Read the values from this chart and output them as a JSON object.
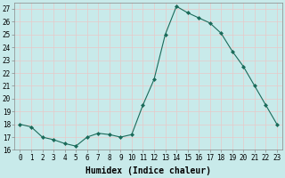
{
  "x": [
    0,
    1,
    2,
    3,
    4,
    5,
    6,
    7,
    8,
    9,
    10,
    11,
    12,
    13,
    14,
    15,
    16,
    17,
    18,
    19,
    20,
    21,
    22,
    23
  ],
  "y": [
    18,
    17.8,
    17,
    16.8,
    16.5,
    16.3,
    17,
    17.3,
    17.2,
    17,
    17.2,
    19.5,
    21.5,
    25,
    27.2,
    26.7,
    26.3,
    25.9,
    25.1,
    23.7,
    22.5,
    21.0,
    19.5,
    18.0
  ],
  "line_color": "#1a6b5a",
  "marker": "D",
  "marker_size": 2.0,
  "linewidth": 0.8,
  "xlabel": "Humidex (Indice chaleur)",
  "xlabel_fontsize": 7,
  "ylim": [
    16,
    27.5
  ],
  "xlim": [
    -0.5,
    23.5
  ],
  "yticks": [
    16,
    17,
    18,
    19,
    20,
    21,
    22,
    23,
    24,
    25,
    26,
    27
  ],
  "xticks": [
    0,
    1,
    2,
    3,
    4,
    5,
    6,
    7,
    8,
    9,
    10,
    11,
    12,
    13,
    14,
    15,
    16,
    17,
    18,
    19,
    20,
    21,
    22,
    23
  ],
  "xtick_labels": [
    "0",
    "1",
    "2",
    "3",
    "4",
    "5",
    "6",
    "7",
    "8",
    "9",
    "10",
    "11",
    "12",
    "13",
    "14",
    "15",
    "16",
    "17",
    "18",
    "19",
    "20",
    "21",
    "22",
    "23"
  ],
  "tick_fontsize": 5.5,
  "background_color": "#c8eaea",
  "grid_color": "#e8c8c8",
  "grid_linewidth": 0.5,
  "spine_color": "#888888"
}
